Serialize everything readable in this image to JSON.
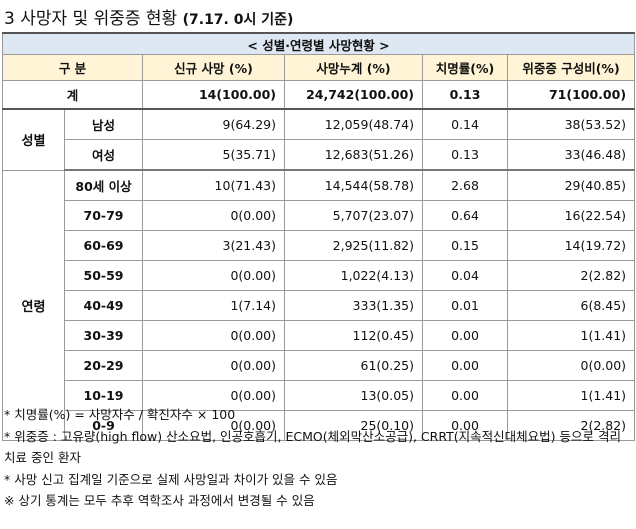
{
  "title": {
    "main": "3  사망자 및 위중증 현황",
    "sub": "(7.17. 0시 기준)"
  },
  "table": {
    "caption": "< 성별·연령별 사망현황 >",
    "headers": {
      "category": "구 분",
      "new_deaths": "신규 사망 (%)",
      "cumulative": "사망누계 (%)",
      "fatality": "치명률(%)",
      "severe": "위중증 구성비(%)"
    },
    "total": {
      "label": "계",
      "new": "14(100.00)",
      "cumulative": "24,742(100.00)",
      "fatality": "0.13",
      "severe": "71(100.00)"
    },
    "gender": {
      "category": "성별",
      "rows": [
        {
          "label": "남성",
          "new": "9(64.29)",
          "cumulative": "12,059(48.74)",
          "fatality": "0.14",
          "severe": "38(53.52)"
        },
        {
          "label": "여성",
          "new": "5(35.71)",
          "cumulative": "12,683(51.26)",
          "fatality": "0.13",
          "severe": "33(46.48)"
        }
      ]
    },
    "age": {
      "category": "연령",
      "rows": [
        {
          "label": "80세 이상",
          "new": "10(71.43)",
          "cumulative": "14,544(58.78)",
          "fatality": "2.68",
          "severe": "29(40.85)"
        },
        {
          "label": "70-79",
          "new": "0(0.00)",
          "cumulative": "5,707(23.07)",
          "fatality": "0.64",
          "severe": "16(22.54)"
        },
        {
          "label": "60-69",
          "new": "3(21.43)",
          "cumulative": "2,925(11.82)",
          "fatality": "0.15",
          "severe": "14(19.72)"
        },
        {
          "label": "50-59",
          "new": "0(0.00)",
          "cumulative": "1,022(4.13)",
          "fatality": "0.04",
          "severe": "2(2.82)"
        },
        {
          "label": "40-49",
          "new": "1(7.14)",
          "cumulative": "333(1.35)",
          "fatality": "0.01",
          "severe": "6(8.45)"
        },
        {
          "label": "30-39",
          "new": "0(0.00)",
          "cumulative": "112(0.45)",
          "fatality": "0.00",
          "severe": "1(1.41)"
        },
        {
          "label": "20-29",
          "new": "0(0.00)",
          "cumulative": "61(0.25)",
          "fatality": "0.00",
          "severe": "0(0.00)"
        },
        {
          "label": "10-19",
          "new": "0(0.00)",
          "cumulative": "13(0.05)",
          "fatality": "0.00",
          "severe": "1(1.41)"
        },
        {
          "label": "0-9",
          "new": "0(0.00)",
          "cumulative": "25(0.10)",
          "fatality": "0.00",
          "severe": "2(2.82)"
        }
      ]
    }
  },
  "notes": [
    "* 치명률(%) = 사망자수 / 확진자수 × 100",
    "* 위중증 : 고유량(high flow) 산소요법, 인공호흡기, ECMO(체외막산소공급), CRRT(지속적신대체요법) 등으로 격리 치료 중인 환자",
    "* 사망 신고 집계일 기준으로 실제 사망일과 차이가 있을 수 있음",
    "※ 상기 통계는 모두 추후 역학조사 과정에서 변경될 수 있음"
  ]
}
